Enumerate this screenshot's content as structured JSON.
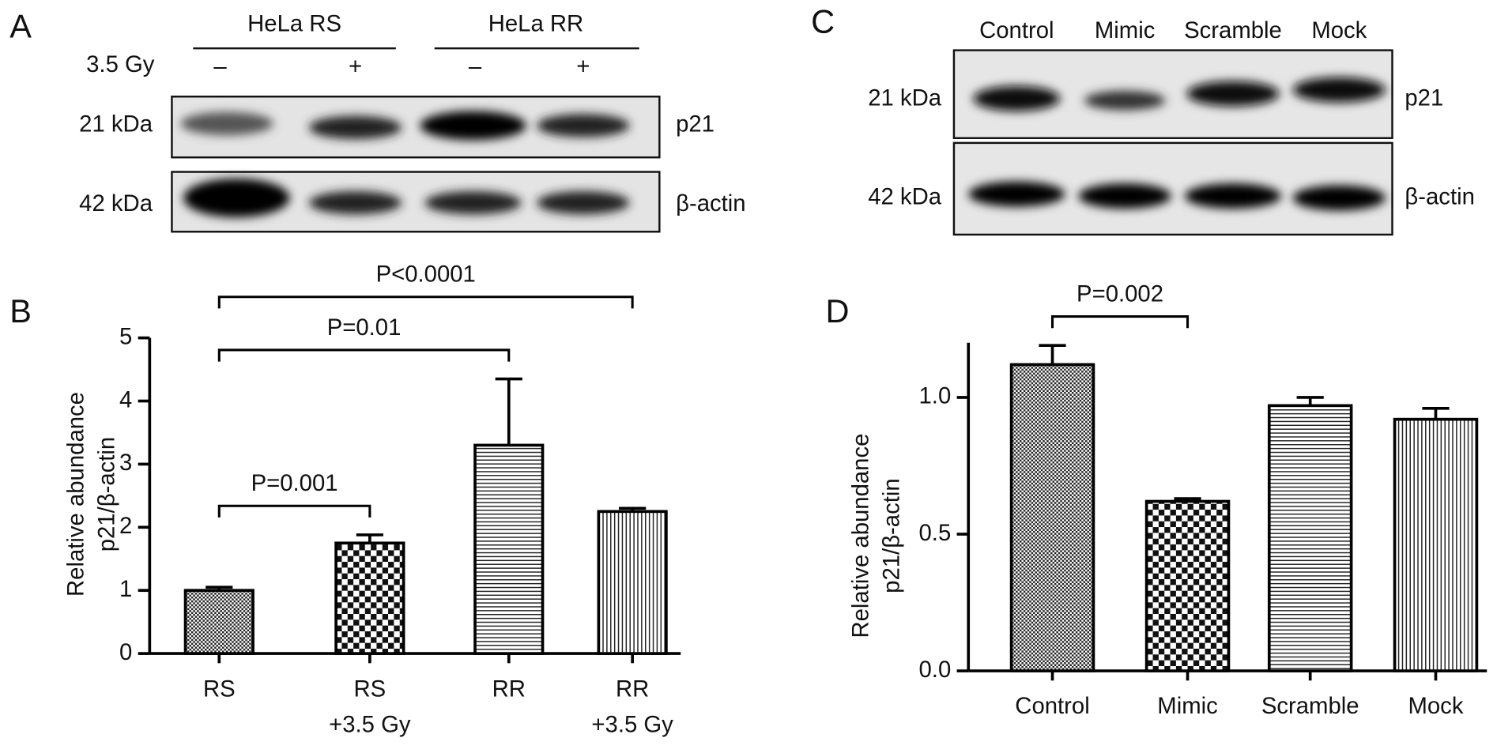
{
  "panel_labels": [
    "A",
    "B",
    "C",
    "D"
  ],
  "blot_a": {
    "groups": [
      "HeLa RS",
      "HeLa RR"
    ],
    "treatment_label": "3.5 Gy",
    "treatments": [
      "–",
      "+",
      "–",
      "+"
    ],
    "rows": [
      {
        "size": "21 kDa",
        "protein": "p21"
      },
      {
        "size": "42 kDa",
        "protein": "β-actin"
      }
    ]
  },
  "blot_c": {
    "lanes": [
      "Control",
      "Mimic",
      "Scramble",
      "Mock"
    ],
    "rows": [
      {
        "size": "21 kDa",
        "protein": "p21"
      },
      {
        "size": "42 kDa",
        "protein": "β-actin"
      }
    ]
  },
  "chart_data": [
    {
      "type": "bar",
      "y_label": [
        "Relative abundance",
        "p21/β-actin"
      ],
      "categories": [
        [
          "RS"
        ],
        [
          "RS",
          "+3.5 Gy"
        ],
        [
          "RR"
        ],
        [
          "RR",
          "+3.5 Gy"
        ]
      ],
      "values": [
        1.0,
        1.75,
        3.3,
        2.25
      ],
      "errors": [
        0.05,
        0.13,
        1.05,
        0.05
      ],
      "fill_patterns": [
        "crosshatch",
        "checker",
        "hlines",
        "vlines"
      ],
      "color": "#000000",
      "ylim": [
        0,
        5
      ],
      "yticks": [
        0,
        1,
        2,
        3,
        4,
        5
      ],
      "annotations": [
        {
          "text": "P=0.001",
          "between": [
            0,
            1
          ]
        },
        {
          "text": "P=0.01",
          "between": [
            0,
            2
          ]
        },
        {
          "text": "P<0.0001",
          "between": [
            0,
            3
          ]
        }
      ]
    },
    {
      "type": "bar",
      "y_label": [
        "Relative abundance",
        "p21/β-actin"
      ],
      "categories": [
        [
          "Control"
        ],
        [
          "Mimic"
        ],
        [
          "Scramble"
        ],
        [
          "Mock"
        ]
      ],
      "values": [
        1.12,
        0.62,
        0.97,
        0.92
      ],
      "errors": [
        0.07,
        0.01,
        0.03,
        0.04
      ],
      "fill_patterns": [
        "crosshatch",
        "checker",
        "hlines",
        "vlines"
      ],
      "color": "#000000",
      "ylim": [
        0,
        1.2
      ],
      "yticks": [
        {
          "value": 0,
          "label": "0.0"
        },
        0.5,
        {
          "value": 1,
          "label": "1.0"
        }
      ],
      "annotations": [
        {
          "text": "P=0.002",
          "between": [
            0,
            1
          ]
        }
      ]
    }
  ]
}
